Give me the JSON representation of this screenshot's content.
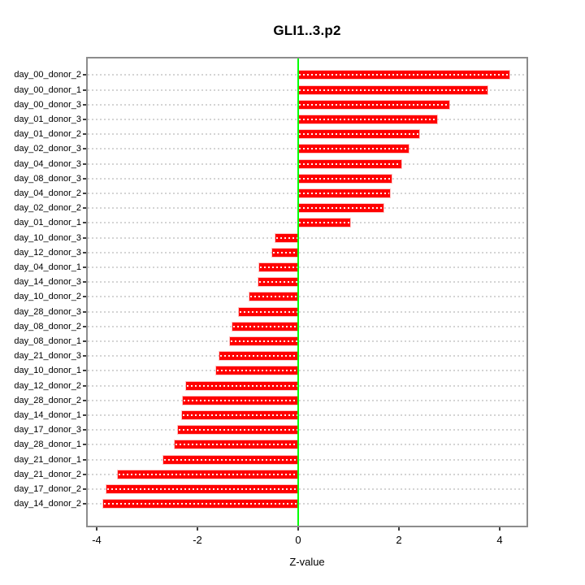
{
  "chart_data": {
    "type": "bar",
    "orientation": "horizontal",
    "title": "GLI1..3.p2",
    "xlabel": "Z-value",
    "ylabel": "",
    "legend_position": "none",
    "grid": "dotted-horizontal-per-category",
    "xlim": [
      -4.18,
      4.53
    ],
    "x_ticks": [
      -4,
      -2,
      0,
      2,
      4
    ],
    "bar_color": "#FF0000",
    "zero_line_color": "#00FF00",
    "grid_color": "#d4d4d4",
    "box_color": "#8c8c8c",
    "categories": [
      "day_00_donor_2",
      "day_00_donor_1",
      "day_00_donor_3",
      "day_01_donor_3",
      "day_01_donor_2",
      "day_02_donor_3",
      "day_04_donor_3",
      "day_08_donor_3",
      "day_04_donor_2",
      "day_02_donor_2",
      "day_01_donor_1",
      "day_10_donor_3",
      "day_12_donor_3",
      "day_04_donor_1",
      "day_14_donor_3",
      "day_10_donor_2",
      "day_28_donor_3",
      "day_08_donor_2",
      "day_08_donor_1",
      "day_21_donor_3",
      "day_10_donor_1",
      "day_12_donor_2",
      "day_28_donor_2",
      "day_14_donor_1",
      "day_17_donor_3",
      "day_28_donor_1",
      "day_21_donor_1",
      "day_21_donor_2",
      "day_17_donor_2",
      "day_14_donor_2"
    ],
    "values": [
      4.2,
      3.75,
      3.0,
      2.75,
      2.4,
      2.2,
      2.05,
      1.86,
      1.83,
      1.7,
      1.03,
      -0.45,
      -0.52,
      -0.77,
      -0.79,
      -0.97,
      -1.18,
      -1.31,
      -1.35,
      -1.56,
      -1.63,
      -2.23,
      -2.29,
      -2.3,
      -2.38,
      -2.45,
      -2.68,
      -3.58,
      -3.81,
      -3.87
    ]
  }
}
